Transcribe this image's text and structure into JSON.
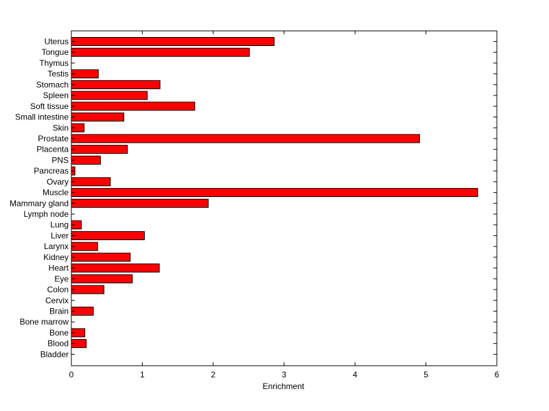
{
  "chart_data": {
    "type": "bar",
    "orientation": "horizontal",
    "title": "",
    "xlabel": "Enrichment",
    "ylabel": "",
    "xlim": [
      0,
      6
    ],
    "xticks": [
      "0",
      "1",
      "2",
      "3",
      "4",
      "5",
      "6"
    ],
    "grid": false,
    "bar_color": "#ff0000",
    "categories": [
      "Uterus",
      "Tongue",
      "Thymus",
      "Testis",
      "Stomach",
      "Spleen",
      "Soft tissue",
      "Small intestine",
      "Skin",
      "Prostate",
      "Placenta",
      "PNS",
      "Pancreas",
      "Ovary",
      "Muscle",
      "Mammary gland",
      "Lymph node",
      "Lung",
      "Liver",
      "Larynx",
      "Kidney",
      "Heart",
      "Eye",
      "Colon",
      "Cervix",
      "Brain",
      "Bone marrow",
      "Bone",
      "Blood",
      "Bladder"
    ],
    "values": [
      2.86,
      2.51,
      0,
      0.38,
      1.25,
      1.07,
      1.74,
      0.74,
      0.18,
      4.91,
      0.79,
      0.41,
      0.05,
      0.55,
      5.73,
      1.93,
      0,
      0.14,
      1.03,
      0.37,
      0.83,
      1.24,
      0.86,
      0.46,
      0,
      0.31,
      0,
      0.19,
      0.21,
      0
    ]
  }
}
